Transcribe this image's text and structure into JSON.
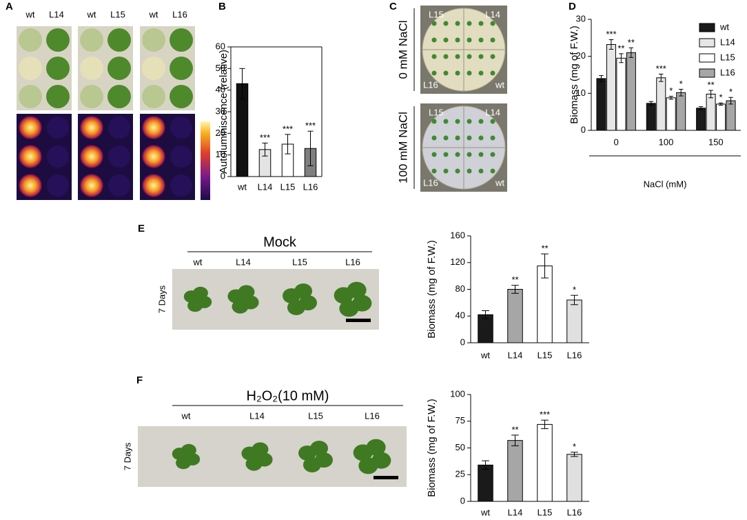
{
  "panels": [
    "A",
    "B",
    "C",
    "D",
    "E",
    "F"
  ],
  "photo_a": {
    "labels": [
      "wt",
      "L14",
      "wt",
      "L15",
      "wt",
      "L16"
    ]
  },
  "photo_c": {
    "conditions": [
      "0 mM NaCl",
      "100 mM NaCl"
    ],
    "plate_labels": [
      "L15",
      "L14",
      "L16",
      "wt"
    ]
  },
  "photo_e": {
    "title": "Mock",
    "labels": [
      "wt",
      "L14",
      "L15",
      "L16"
    ],
    "side_label": "7 Days"
  },
  "photo_f": {
    "title": "H₂O₂(10 mM)",
    "labels": [
      "wt",
      "L14",
      "L15",
      "L16"
    ],
    "side_label": "7 Days"
  },
  "chart_data": [
    {
      "type": "bar",
      "ylabel": "Autoluminiscence (relative)",
      "categories": [
        "wt",
        "L14",
        "L15",
        "L16"
      ],
      "values": [
        43,
        12.5,
        15,
        13
      ],
      "errors": [
        7,
        3,
        4.5,
        8
      ],
      "annotations": [
        null,
        "***",
        "***",
        "***"
      ],
      "colors": [
        "#111111",
        "#e4e4e4",
        "#ffffff",
        "#7f7f7f"
      ],
      "ylim": [
        0,
        60
      ],
      "yticks": [
        0,
        10,
        20,
        30,
        40,
        50,
        60
      ],
      "box": true
    },
    {
      "type": "grouped_bar",
      "ylabel": "Biomass (mg of F.W.)",
      "xlabel": "NaCl (mM)",
      "categories": [
        "0",
        "100",
        "150"
      ],
      "series": [
        {
          "name": "wt",
          "color": "#1a1a1a",
          "values": [
            14,
            7.3,
            6
          ],
          "errors": [
            0.8,
            0.5,
            0.4
          ],
          "annotations": [
            null,
            null,
            null
          ]
        },
        {
          "name": "L14",
          "color": "#e6e6e6",
          "values": [
            23.2,
            14.2,
            9.8
          ],
          "errors": [
            1.3,
            1,
            1
          ],
          "annotations": [
            "***",
            "***",
            "**"
          ]
        },
        {
          "name": "L15",
          "color": "#ffffff",
          "values": [
            19.5,
            8.8,
            7.1
          ],
          "errors": [
            1.2,
            0.4,
            0.3
          ],
          "annotations": [
            "**",
            "*",
            "*"
          ]
        },
        {
          "name": "L16",
          "color": "#a6a6a6",
          "values": [
            21,
            10.2,
            8
          ],
          "errors": [
            1.3,
            0.9,
            0.9
          ],
          "annotations": [
            "**",
            "*",
            "*"
          ]
        }
      ],
      "ylim": [
        0,
        30
      ],
      "yticks": [
        0,
        10,
        20,
        30
      ],
      "legend": "top-right"
    },
    {
      "type": "bar",
      "ylabel": "Biomass (mg of F.W.)",
      "categories": [
        "wt",
        "L14",
        "L15",
        "L16"
      ],
      "values": [
        42,
        80,
        115,
        64
      ],
      "errors": [
        6,
        6,
        18,
        7
      ],
      "annotations": [
        null,
        "**",
        "**",
        "*"
      ],
      "colors": [
        "#1a1a1a",
        "#a6a6a6",
        "#ffffff",
        "#e0e0e0"
      ],
      "ylim": [
        0,
        160
      ],
      "yticks": [
        0,
        40,
        80,
        120,
        160
      ]
    },
    {
      "type": "bar",
      "ylabel": "Biomass (mg of F.W.)",
      "categories": [
        "wt",
        "L14",
        "L15",
        "L16"
      ],
      "values": [
        34,
        57,
        72,
        44
      ],
      "errors": [
        4,
        5,
        4,
        2
      ],
      "annotations": [
        null,
        "**",
        "***",
        "*"
      ],
      "colors": [
        "#1a1a1a",
        "#a6a6a6",
        "#ffffff",
        "#e0e0e0"
      ],
      "ylim": [
        0,
        100
      ],
      "yticks": [
        0,
        25,
        50,
        75,
        100
      ]
    }
  ]
}
